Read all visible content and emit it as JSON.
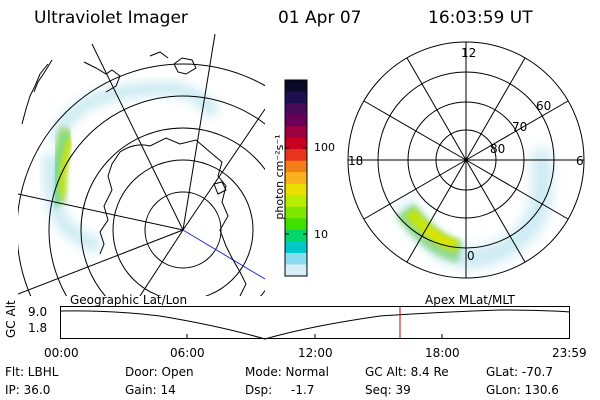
{
  "header": {
    "instrument": "Ultraviolet Imager",
    "date": "01 Apr 07",
    "time": "16:03:59 UT"
  },
  "geo_panel": {
    "label": "Geographic Lat/Lon"
  },
  "polar_panel": {
    "label": "Apex MLat/MLT",
    "mlt_labels": [
      "12",
      "18",
      "6",
      "0"
    ],
    "lat_labels": [
      "60",
      "70",
      "80"
    ]
  },
  "colorbar": {
    "unit_label": "photon cm⁻²s⁻¹",
    "tick_labels": [
      "100",
      "10"
    ],
    "colors": [
      "#0a0a28",
      "#1a1050",
      "#4a0a5a",
      "#6a0058",
      "#9c0040",
      "#c80020",
      "#e8341c",
      "#f57f17",
      "#f9b21c",
      "#e8e000",
      "#b8ec00",
      "#7ee600",
      "#3fe000",
      "#00d66a",
      "#00c8c8",
      "#8adcf0",
      "#d8eef6"
    ]
  },
  "altitude_plot": {
    "ylabel": "GC Alt",
    "yticks": [
      "9.0",
      "1.8"
    ],
    "xticks": [
      "00:00",
      "06:00",
      "12:00",
      "18:00",
      "23:59"
    ],
    "current_marker_color": "#cc0000"
  },
  "info": {
    "flt": "Flt: LBHL",
    "ip": "IP: 36.0",
    "door": "Door: Open",
    "gain": "Gain: 14",
    "mode": "Mode: Normal",
    "dsp": "Dsp:",
    "dsp_value": "-1.7",
    "gc_alt": "GC Alt: 8.4 Re",
    "seq": "Seq: 39",
    "glat": "GLat: -70.7",
    "glon": "GLon: 130.6"
  }
}
